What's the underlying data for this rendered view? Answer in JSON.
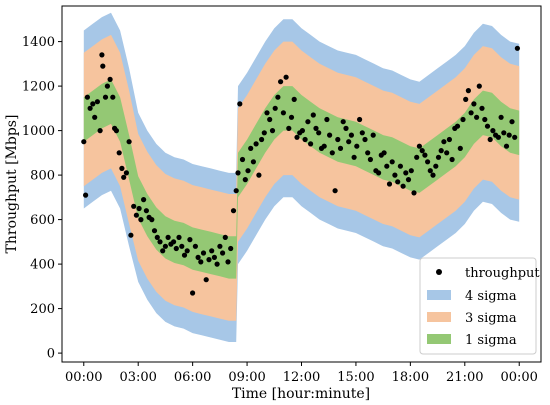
{
  "chart_data": {
    "type": "scatter",
    "xlabel": "Time [hour:minute]",
    "ylabel": "Throughput [Mbps]",
    "xlim_hours": [
      -1.2,
      25.2
    ],
    "ylim": [
      -40,
      1560
    ],
    "x_ticks": [
      "00:00",
      "03:00",
      "06:00",
      "09:00",
      "12:00",
      "15:00",
      "18:00",
      "21:00",
      "00:00"
    ],
    "x_tick_hours": [
      0,
      3,
      6,
      9,
      12,
      15,
      18,
      21,
      24
    ],
    "y_ticks": [
      0,
      200,
      400,
      600,
      800,
      1000,
      1200,
      1400
    ],
    "legend_position": "bottom-right",
    "grid": false,
    "band_profile": {
      "hours": [
        0,
        0.5,
        1,
        1.5,
        2,
        2.5,
        3,
        3.5,
        4,
        4.5,
        5,
        5.5,
        6,
        6.5,
        7,
        7.5,
        8,
        8.4,
        8.5,
        9,
        9.5,
        10,
        10.5,
        11,
        11.5,
        12,
        12.5,
        13,
        13.5,
        14,
        14.5,
        15,
        15.5,
        16,
        16.5,
        17,
        17.5,
        18,
        18.5,
        19,
        19.5,
        20,
        20.5,
        21,
        21.5,
        22,
        22.5,
        23,
        23.5,
        24
      ],
      "mean": [
        1050,
        1080,
        1110,
        1130,
        1050,
        880,
        700,
        620,
        560,
        520,
        500,
        490,
        470,
        460,
        450,
        440,
        430,
        430,
        800,
        860,
        930,
        1000,
        1060,
        1100,
        1100,
        1060,
        1030,
        1000,
        980,
        960,
        950,
        940,
        920,
        900,
        880,
        870,
        850,
        830,
        820,
        850,
        880,
        910,
        940,
        980,
        1040,
        1080,
        1070,
        1030,
        1000,
        990
      ],
      "sigma": [
        100,
        100,
        100,
        100,
        100,
        100,
        95,
        95,
        95,
        95,
        95,
        95,
        95,
        95,
        95,
        95,
        95,
        95,
        100,
        100,
        100,
        100,
        100,
        100,
        100,
        100,
        100,
        100,
        100,
        100,
        100,
        100,
        100,
        100,
        100,
        100,
        100,
        100,
        100,
        100,
        100,
        100,
        100,
        100,
        100,
        100,
        100,
        100,
        100,
        100
      ]
    },
    "series": [
      {
        "name": "throughput",
        "color": "#000000",
        "points": [
          [
            0.0,
            950
          ],
          [
            0.1,
            710
          ],
          [
            0.2,
            1150
          ],
          [
            0.35,
            1100
          ],
          [
            0.5,
            1120
          ],
          [
            0.6,
            1060
          ],
          [
            0.75,
            1130
          ],
          [
            0.9,
            1000
          ],
          [
            1.0,
            1340
          ],
          [
            1.05,
            1290
          ],
          [
            1.2,
            1150
          ],
          [
            1.3,
            1200
          ],
          [
            1.45,
            1230
          ],
          [
            1.6,
            1150
          ],
          [
            1.7,
            1010
          ],
          [
            1.8,
            1000
          ],
          [
            1.95,
            900
          ],
          [
            2.1,
            830
          ],
          [
            2.2,
            790
          ],
          [
            2.35,
            810
          ],
          [
            2.5,
            950
          ],
          [
            2.6,
            530
          ],
          [
            2.75,
            660
          ],
          [
            2.9,
            620
          ],
          [
            3.05,
            650
          ],
          [
            3.15,
            600
          ],
          [
            3.3,
            690
          ],
          [
            3.45,
            640
          ],
          [
            3.6,
            610
          ],
          [
            3.75,
            600
          ],
          [
            3.9,
            550
          ],
          [
            4.05,
            520
          ],
          [
            4.2,
            500
          ],
          [
            4.35,
            460
          ],
          [
            4.5,
            480
          ],
          [
            4.65,
            520
          ],
          [
            4.8,
            490
          ],
          [
            4.95,
            500
          ],
          [
            5.1,
            470
          ],
          [
            5.25,
            520
          ],
          [
            5.4,
            480
          ],
          [
            5.55,
            440
          ],
          [
            5.7,
            460
          ],
          [
            5.85,
            510
          ],
          [
            6.0,
            270
          ],
          [
            6.15,
            480
          ],
          [
            6.3,
            430
          ],
          [
            6.45,
            410
          ],
          [
            6.6,
            450
          ],
          [
            6.75,
            330
          ],
          [
            6.9,
            420
          ],
          [
            7.05,
            460
          ],
          [
            7.2,
            430
          ],
          [
            7.35,
            400
          ],
          [
            7.5,
            480
          ],
          [
            7.65,
            450
          ],
          [
            7.8,
            520
          ],
          [
            7.95,
            410
          ],
          [
            8.1,
            470
          ],
          [
            8.25,
            640
          ],
          [
            8.4,
            730
          ],
          [
            8.5,
            810
          ],
          [
            8.6,
            1120
          ],
          [
            8.75,
            870
          ],
          [
            8.9,
            780
          ],
          [
            9.05,
            820
          ],
          [
            9.2,
            920
          ],
          [
            9.35,
            860
          ],
          [
            9.5,
            940
          ],
          [
            9.65,
            800
          ],
          [
            9.8,
            960
          ],
          [
            9.95,
            990
          ],
          [
            10.1,
            1080
          ],
          [
            10.25,
            1050
          ],
          [
            10.4,
            1000
          ],
          [
            10.55,
            1100
          ],
          [
            10.7,
            1150
          ],
          [
            10.85,
            1220
          ],
          [
            11.0,
            1080
          ],
          [
            11.15,
            1240
          ],
          [
            11.3,
            1010
          ],
          [
            11.45,
            1060
          ],
          [
            11.6,
            1140
          ],
          [
            11.75,
            970
          ],
          [
            11.9,
            990
          ],
          [
            12.05,
            1000
          ],
          [
            12.2,
            960
          ],
          [
            12.35,
            1040
          ],
          [
            12.5,
            940
          ],
          [
            12.65,
            1070
          ],
          [
            12.8,
            1010
          ],
          [
            12.95,
            990
          ],
          [
            13.1,
            920
          ],
          [
            13.25,
            930
          ],
          [
            13.4,
            1050
          ],
          [
            13.55,
            980
          ],
          [
            13.7,
            900
          ],
          [
            13.85,
            730
          ],
          [
            14.0,
            960
          ],
          [
            14.15,
            920
          ],
          [
            14.3,
            1040
          ],
          [
            14.45,
            1010
          ],
          [
            14.6,
            950
          ],
          [
            14.75,
            980
          ],
          [
            14.9,
            880
          ],
          [
            15.05,
            930
          ],
          [
            15.2,
            1050
          ],
          [
            15.35,
            990
          ],
          [
            15.5,
            960
          ],
          [
            15.65,
            900
          ],
          [
            15.8,
            870
          ],
          [
            15.95,
            980
          ],
          [
            16.1,
            820
          ],
          [
            16.25,
            810
          ],
          [
            16.4,
            890
          ],
          [
            16.55,
            900
          ],
          [
            16.7,
            840
          ],
          [
            16.85,
            760
          ],
          [
            17.0,
            860
          ],
          [
            17.15,
            800
          ],
          [
            17.3,
            770
          ],
          [
            17.45,
            840
          ],
          [
            17.6,
            750
          ],
          [
            17.75,
            810
          ],
          [
            17.9,
            780
          ],
          [
            18.05,
            820
          ],
          [
            18.2,
            720
          ],
          [
            18.35,
            880
          ],
          [
            18.5,
            930
          ],
          [
            18.65,
            910
          ],
          [
            18.8,
            890
          ],
          [
            18.95,
            860
          ],
          [
            19.1,
            820
          ],
          [
            19.25,
            800
          ],
          [
            19.4,
            840
          ],
          [
            19.55,
            880
          ],
          [
            19.7,
            910
          ],
          [
            19.85,
            950
          ],
          [
            20.0,
            900
          ],
          [
            20.15,
            960
          ],
          [
            20.3,
            870
          ],
          [
            20.45,
            1010
          ],
          [
            20.6,
            1020
          ],
          [
            20.75,
            920
          ],
          [
            20.9,
            1050
          ],
          [
            21.05,
            1140
          ],
          [
            21.2,
            1180
          ],
          [
            21.35,
            1080
          ],
          [
            21.5,
            1120
          ],
          [
            21.65,
            1060
          ],
          [
            21.8,
            1200
          ],
          [
            21.95,
            1100
          ],
          [
            22.1,
            1050
          ],
          [
            22.25,
            1020
          ],
          [
            22.4,
            960
          ],
          [
            22.55,
            1000
          ],
          [
            22.7,
            980
          ],
          [
            22.85,
            970
          ],
          [
            23.0,
            1060
          ],
          [
            23.15,
            990
          ],
          [
            23.3,
            930
          ],
          [
            23.45,
            980
          ],
          [
            23.6,
            1040
          ],
          [
            23.75,
            970
          ],
          [
            23.9,
            1370
          ]
        ]
      }
    ],
    "bands": [
      {
        "name": "4 sigma",
        "k": 4,
        "color": "#a7c7e7"
      },
      {
        "name": "3 sigma",
        "k": 3,
        "color": "#f6c49e"
      },
      {
        "name": "1 sigma",
        "k": 1,
        "color": "#94c874"
      }
    ]
  }
}
